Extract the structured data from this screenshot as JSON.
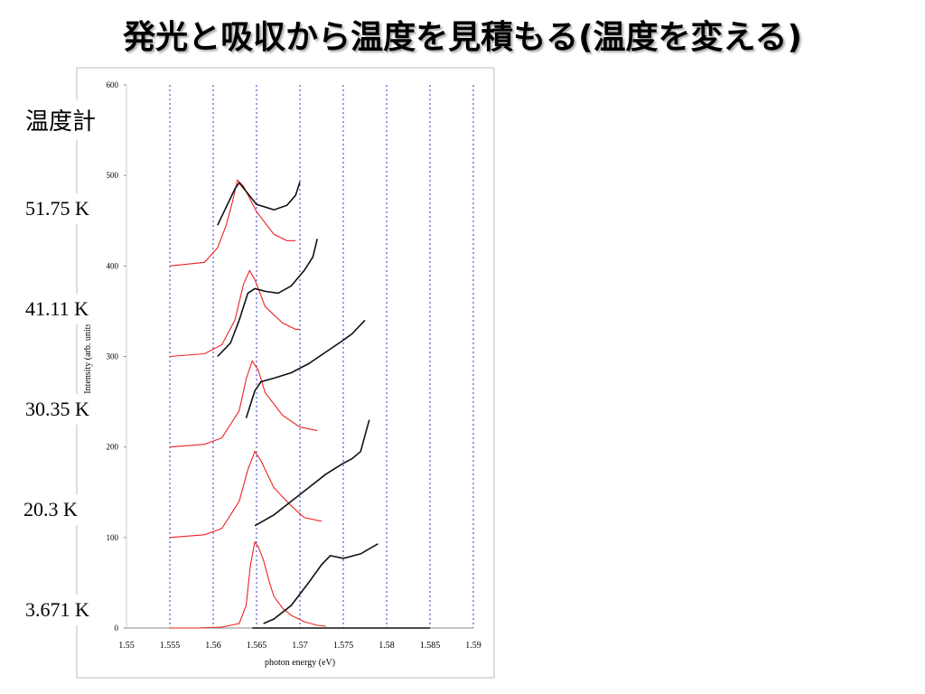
{
  "slide": {
    "title": "発光と吸収から温度を見積もる(温度を変える)",
    "thermometer_label": "温度計",
    "temperatures": [
      "51.75 K",
      "41.11 K",
      "30.35 K",
      "20.3 K",
      "3.671 K"
    ]
  },
  "chart_data": {
    "type": "line",
    "x_label": "photon energy (eV)",
    "y_label": "Intensity (arb. units)",
    "xlim": [
      1.55,
      1.59
    ],
    "xticks": [
      1.55,
      1.555,
      1.56,
      1.565,
      1.57,
      1.575,
      1.58,
      1.585,
      1.59
    ],
    "ylim": [
      0,
      600
    ],
    "yticks": [
      0,
      100,
      200,
      300,
      400,
      500,
      600
    ],
    "grid": true,
    "grid_color": "#3333cc",
    "series": [
      {
        "color": "#ee2222",
        "x": [
          1.555,
          1.558,
          1.561,
          1.563,
          1.5638,
          1.5643,
          1.5648,
          1.5652,
          1.5658,
          1.5665,
          1.567,
          1.568,
          1.569,
          1.5705,
          1.572,
          1.573
        ],
        "values": [
          0,
          0,
          1,
          5,
          25,
          70,
          95,
          90,
          75,
          50,
          35,
          22,
          14,
          7,
          3,
          2
        ]
      },
      {
        "color": "#111111",
        "x": [
          1.5645,
          1.585
        ],
        "values": [
          0,
          0
        ]
      },
      {
        "color": "#111111",
        "x": [
          1.5658,
          1.567,
          1.569,
          1.571,
          1.5725,
          1.5735,
          1.575,
          1.577,
          1.579
        ],
        "values": [
          5,
          10,
          25,
          50,
          70,
          80,
          77,
          82,
          93
        ]
      },
      {
        "color": "#ee2222",
        "x": [
          1.555,
          1.559,
          1.561,
          1.563,
          1.564,
          1.5648,
          1.5655,
          1.567,
          1.569,
          1.5705,
          1.5725
        ],
        "values": [
          100,
          103,
          110,
          140,
          175,
          195,
          185,
          155,
          135,
          122,
          118
        ]
      },
      {
        "color": "#111111",
        "x": [
          1.5648,
          1.567,
          1.569,
          1.571,
          1.573,
          1.575,
          1.576,
          1.577,
          1.578
        ],
        "values": [
          113,
          125,
          140,
          155,
          170,
          182,
          187,
          195,
          230
        ]
      },
      {
        "color": "#ee2222",
        "x": [
          1.555,
          1.559,
          1.561,
          1.563,
          1.5638,
          1.5645,
          1.5652,
          1.566,
          1.568,
          1.57,
          1.572
        ],
        "values": [
          200,
          203,
          210,
          240,
          275,
          295,
          285,
          260,
          235,
          222,
          218
        ]
      },
      {
        "color": "#111111",
        "x": [
          1.5638,
          1.5648,
          1.5655,
          1.567,
          1.569,
          1.571,
          1.573,
          1.575,
          1.576,
          1.5775
        ],
        "values": [
          232,
          262,
          272,
          276,
          282,
          292,
          305,
          318,
          325,
          340
        ]
      },
      {
        "color": "#ee2222",
        "x": [
          1.555,
          1.559,
          1.561,
          1.5625,
          1.5635,
          1.5642,
          1.5648,
          1.566,
          1.568,
          1.5695,
          1.57
        ],
        "values": [
          300,
          303,
          313,
          340,
          380,
          395,
          385,
          355,
          337,
          330,
          330
        ]
      },
      {
        "color": "#111111",
        "x": [
          1.5605,
          1.562,
          1.563,
          1.564,
          1.5648,
          1.566,
          1.5675,
          1.569,
          1.5705,
          1.5715,
          1.572
        ],
        "values": [
          300,
          315,
          340,
          370,
          375,
          372,
          370,
          378,
          395,
          410,
          430
        ]
      },
      {
        "color": "#ee2222",
        "x": [
          1.555,
          1.559,
          1.5605,
          1.5615,
          1.5622,
          1.5628,
          1.5635,
          1.565,
          1.567,
          1.5685,
          1.5695
        ],
        "values": [
          400,
          404,
          420,
          445,
          470,
          495,
          488,
          460,
          435,
          428,
          428
        ]
      },
      {
        "color": "#111111",
        "x": [
          1.5605,
          1.5615,
          1.5625,
          1.563,
          1.564,
          1.565,
          1.567,
          1.5685,
          1.5695,
          1.57
        ],
        "values": [
          445,
          465,
          485,
          492,
          480,
          468,
          462,
          467,
          478,
          493
        ]
      }
    ]
  }
}
